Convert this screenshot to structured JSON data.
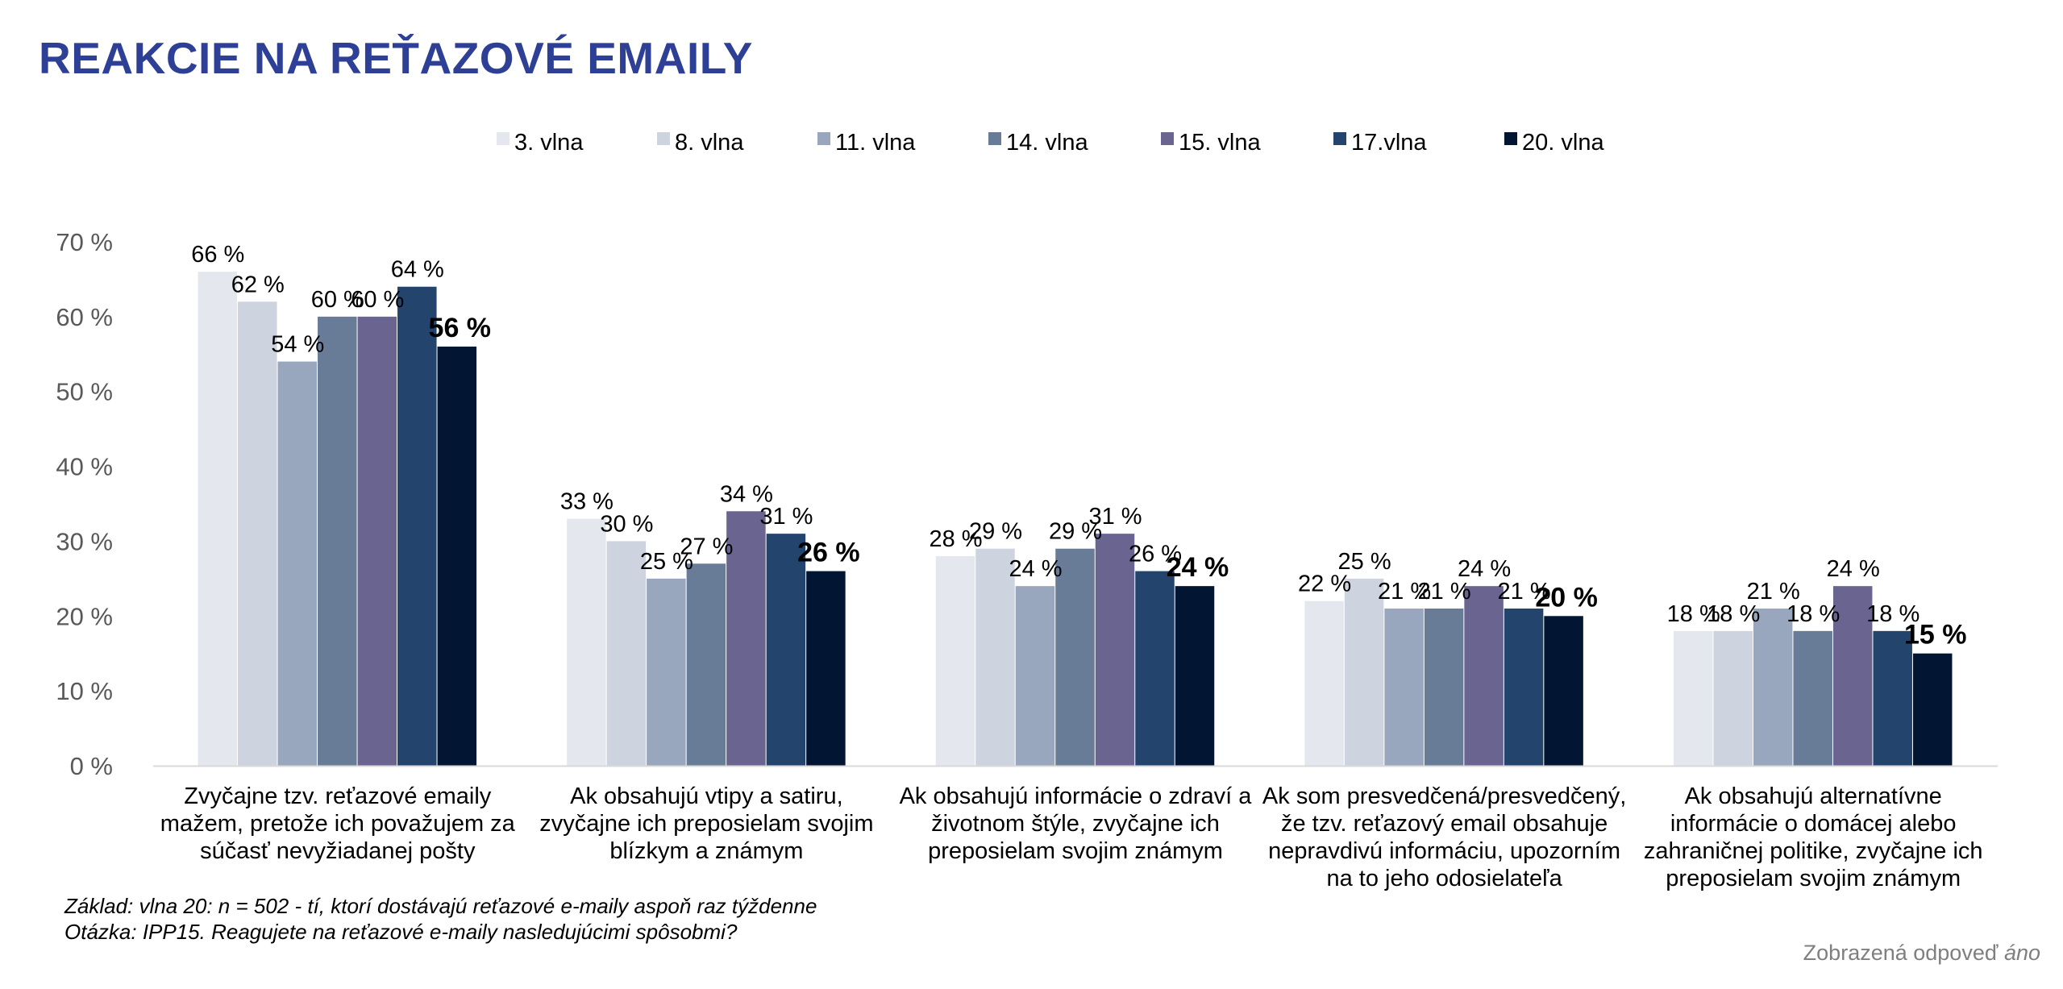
{
  "title": "REAKCIE NA REŤAZOVÉ EMAILY",
  "footnote": {
    "line1": "Základ: vlna 20: n = 502 - tí, ktorí dostávajú reťazové e-maily aspoň raz týždenne",
    "line2": "Otázka: IPP15. Reagujete na reťazové e-maily nasledujúcimi spôsobmi?"
  },
  "note": {
    "prefix": "Zobrazená odpoveď ",
    "value": "áno"
  },
  "chart_data": {
    "type": "bar",
    "ylim": [
      0,
      70
    ],
    "yticks": [
      0,
      10,
      20,
      30,
      40,
      50,
      60,
      70
    ],
    "ytick_labels": [
      "0 %",
      "10 %",
      "20 %",
      "30 %",
      "40 %",
      "50 %",
      "60 %",
      "70 %"
    ],
    "legend_position": "top",
    "grid": false,
    "categories": [
      [
        "Zvyčajne tzv. reťazové emaily",
        "mažem, pretože ich považujem za",
        "súčasť nevyžiadanej pošty"
      ],
      [
        "Ak obsahujú vtipy a satiru,",
        "zvyčajne ich preposielam svojim",
        "blízkym a známym"
      ],
      [
        "Ak obsahujú informácie o zdraví a",
        "životnom štýle, zvyčajne ich",
        "preposielam svojim známym"
      ],
      [
        "Ak som presvedčená/presvedčený,",
        "že tzv. reťazový email obsahuje",
        "nepravdivú informáciu, upozorním",
        "na to jeho odosielateľa"
      ],
      [
        "Ak obsahujú alternatívne",
        "informácie o domácej alebo",
        "zahraničnej politike, zvyčajne ich",
        "preposielam svojim známym"
      ]
    ],
    "series": [
      {
        "name": "3. vlna",
        "color": "#e4e8ee",
        "values": [
          66,
          33,
          28,
          22,
          18
        ],
        "labels": [
          "66 %",
          "33 %",
          "28 %",
          "22 %",
          "18 %"
        ]
      },
      {
        "name": "8. vlna",
        "color": "#cdd4df",
        "values": [
          62,
          30,
          29,
          25,
          18
        ],
        "labels": [
          "62 %",
          "30 %",
          "29 %",
          "25 %",
          "18 %"
        ]
      },
      {
        "name": "11. vlna",
        "color": "#98a7bd",
        "values": [
          54,
          25,
          24,
          21,
          21
        ],
        "labels": [
          "54 %",
          "25 %",
          "24 %",
          "21 %",
          "21 %"
        ]
      },
      {
        "name": "14. vlna",
        "color": "#687c98",
        "values": [
          60,
          27,
          29,
          21,
          18
        ],
        "labels": [
          "60 %",
          "27 %",
          "29 %",
          "21 %",
          "18 %"
        ]
      },
      {
        "name": "15. vlna",
        "color": "#6a6491",
        "values": [
          60,
          34,
          31,
          24,
          24
        ],
        "labels": [
          "60 %",
          "34 %",
          "31 %",
          "24 %",
          "24 %"
        ]
      },
      {
        "name": "17.vlna",
        "color": "#23446c",
        "values": [
          64,
          31,
          26,
          21,
          18
        ],
        "labels": [
          "64 %",
          "31 %",
          "26 %",
          "21 %",
          "18 %"
        ]
      },
      {
        "name": "20. vlna",
        "color": "#021533",
        "values": [
          56,
          26,
          24,
          20,
          15
        ],
        "labels": [
          "56 %",
          "26 %",
          "24 %",
          "20 %",
          "15 %"
        ],
        "emphasis": true
      }
    ]
  }
}
